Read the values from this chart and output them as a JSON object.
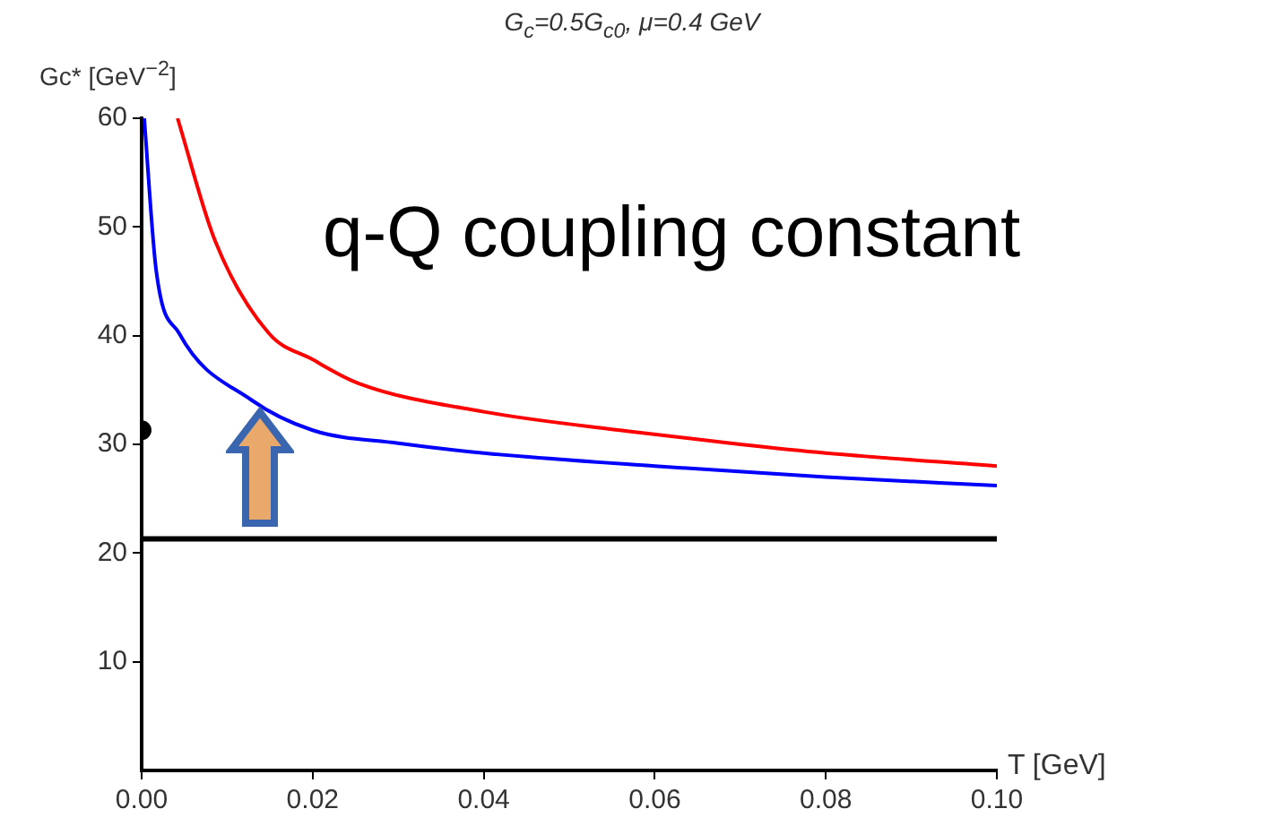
{
  "chart_data": {
    "type": "line",
    "title": "G$_{c}$=0.5G$_{c0}$, μ=0.4 GeV",
    "xlabel": "T [GeV]",
    "ylabel": "Gc* [GeV$^{−2}$]",
    "annotations": [
      "q-Q coupling constant"
    ],
    "xlim": [
      0,
      0.1
    ],
    "xticks": [
      {
        "value": 0,
        "label": "0.00"
      },
      {
        "value": 0.02,
        "label": "0.02"
      },
      {
        "value": 0.04,
        "label": "0.04"
      },
      {
        "value": 0.06,
        "label": "0.06"
      },
      {
        "value": 0.08,
        "label": "0.08"
      },
      {
        "value": 0.1,
        "label": "0.10"
      }
    ],
    "ylim": [
      0,
      60
    ],
    "yticks": [
      10,
      20,
      30,
      40,
      50,
      60
    ],
    "grid": false,
    "legend": false,
    "marker": "none",
    "line_style": "solid",
    "series": [
      {
        "color": "#ff0000",
        "x": [
          0.0042,
          0.0086,
          0.0149,
          0.02,
          0.0254,
          0.04,
          0.057,
          0.07,
          0.08,
          0.1
        ],
        "values": [
          60,
          48.7,
          40.2,
          37.8,
          35.6,
          33,
          31.2,
          30,
          29.2,
          28
        ]
      },
      {
        "color": "#0000ff",
        "x": [
          0.0003,
          0.0017,
          0.0044,
          0.0128,
          0.02,
          0.03,
          0.04,
          0.06,
          0.08,
          0.1
        ],
        "values": [
          60,
          46,
          40.2,
          34.1,
          31.3,
          30.1,
          29.2,
          28,
          27,
          26.2
        ]
      },
      {
        "type": "scatter",
        "marker": "circle",
        "color": "#000000",
        "x": [
          0
        ],
        "values": [
          31.3
        ]
      }
    ],
    "ref_lines": [
      {
        "axis": "y",
        "value": 21.3,
        "color": "#000000"
      }
    ]
  }
}
